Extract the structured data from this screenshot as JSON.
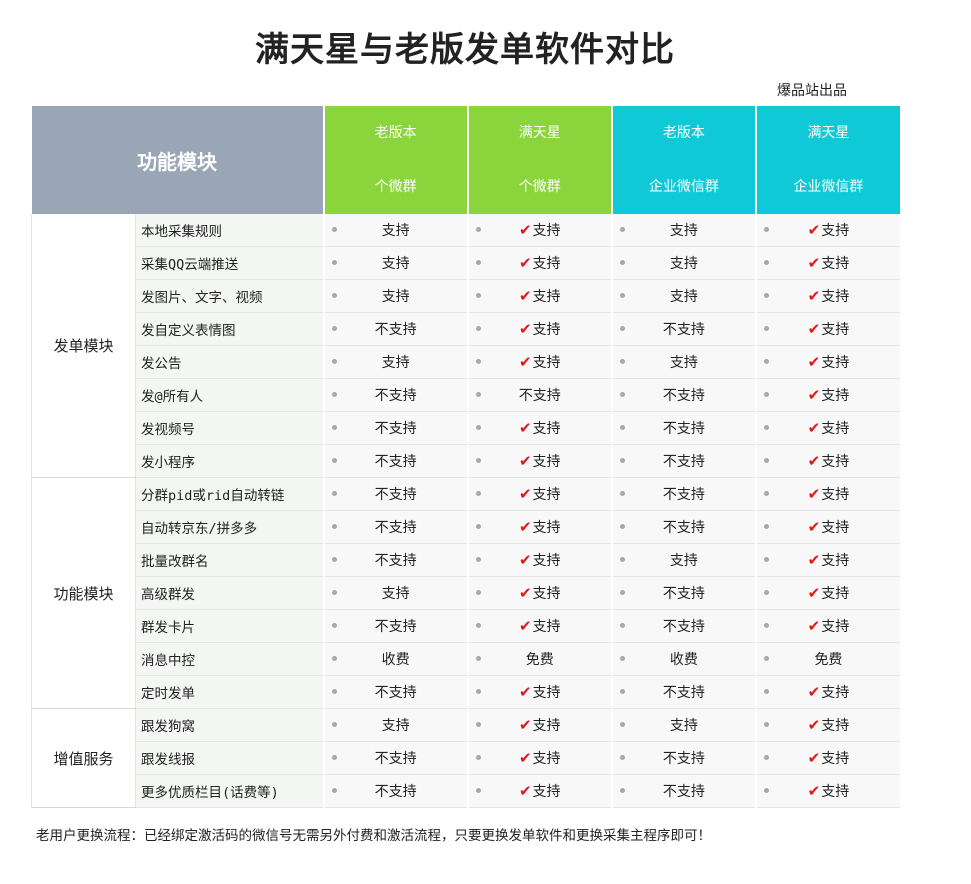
{
  "title": "满天星与老版发单软件对比",
  "subtitle": "爆品站出品",
  "note": "老用户更换流程：已经绑定激活码的微信号无需另外付费和激活流程，只要更换发单软件和更换采集主程序即可！",
  "header": {
    "module": "功能模块",
    "columns": [
      {
        "line1": "老版本",
        "line2": "个微群"
      },
      {
        "line1": "满天星",
        "line2": "个微群"
      },
      {
        "line1": "老版本",
        "line2": "企业微信群"
      },
      {
        "line1": "满天星",
        "line2": "企业微信群"
      }
    ]
  },
  "colors": {
    "header_gray": "#9aa6b5",
    "header_green": "#8ad53c",
    "header_cyan": "#10c9d6",
    "check_red": "#e01818"
  },
  "check_icon": "✔",
  "categories": [
    {
      "name": "发单模块",
      "rows": [
        {
          "feature": "本地采集规则",
          "values": [
            "支持",
            "✔支持",
            "支持",
            "✔支持"
          ]
        },
        {
          "feature": "采集QQ云端推送",
          "values": [
            "支持",
            "✔支持",
            "支持",
            "✔支持"
          ]
        },
        {
          "feature": "发图片、文字、视频",
          "values": [
            "支持",
            "✔支持",
            "支持",
            "✔支持"
          ]
        },
        {
          "feature": "发自定义表情图",
          "values": [
            "不支持",
            "✔支持",
            "不支持",
            "✔支持"
          ]
        },
        {
          "feature": "发公告",
          "values": [
            "支持",
            "✔支持",
            "支持",
            "✔支持"
          ]
        },
        {
          "feature": "发@所有人",
          "values": [
            "不支持",
            "不支持",
            "不支持",
            "✔支持"
          ]
        },
        {
          "feature": "发视频号",
          "values": [
            "不支持",
            "✔支持",
            "不支持",
            "✔支持"
          ]
        },
        {
          "feature": "发小程序",
          "values": [
            "不支持",
            "✔支持",
            "不支持",
            "✔支持"
          ]
        }
      ]
    },
    {
      "name": "功能模块",
      "rows": [
        {
          "feature": "分群pid或rid自动转链",
          "values": [
            "不支持",
            "✔支持",
            "不支持",
            "✔支持"
          ]
        },
        {
          "feature": "自动转京东/拼多多",
          "values": [
            "不支持",
            "✔支持",
            "不支持",
            "✔支持"
          ]
        },
        {
          "feature": "批量改群名",
          "values": [
            "不支持",
            "✔支持",
            "支持",
            "✔支持"
          ]
        },
        {
          "feature": "高级群发",
          "values": [
            "支持",
            "✔支持",
            "不支持",
            "✔支持"
          ]
        },
        {
          "feature": "群发卡片",
          "values": [
            "不支持",
            "✔支持",
            "不支持",
            "✔支持"
          ]
        },
        {
          "feature": "消息中控",
          "values": [
            "收费",
            "免费",
            "收费",
            "免费"
          ]
        },
        {
          "feature": "定时发单",
          "values": [
            "不支持",
            "✔支持",
            "不支持",
            "✔支持"
          ]
        }
      ]
    },
    {
      "name": "增值服务",
      "rows": [
        {
          "feature": "跟发狗窝",
          "values": [
            "支持",
            "✔支持",
            "支持",
            "✔支持"
          ]
        },
        {
          "feature": "跟发线报",
          "values": [
            "不支持",
            "✔支持",
            "不支持",
            "✔支持"
          ]
        },
        {
          "feature": "更多优质栏目(话费等)",
          "values": [
            "不支持",
            "✔支持",
            "不支持",
            "✔支持"
          ]
        }
      ]
    }
  ]
}
